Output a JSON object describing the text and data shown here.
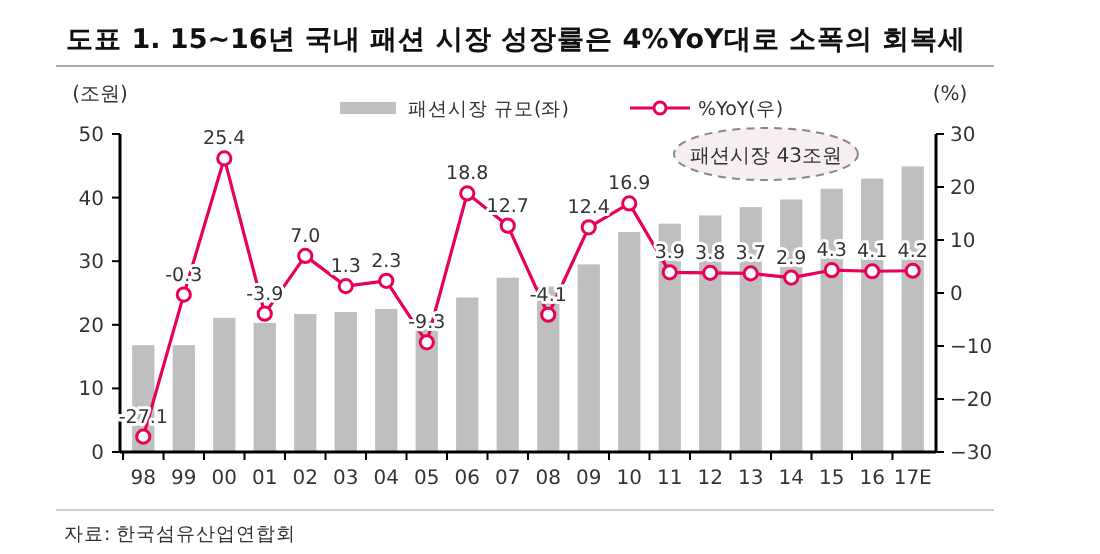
{
  "chart_data": {
    "type": "bar",
    "title": "도표 1. 15~16년 국내 패션 시장 성장률은 4%YoY대로 소폭의 회복세",
    "ylabel": "(조원)",
    "y2label": "(%)",
    "categories": [
      "98",
      "99",
      "00",
      "01",
      "02",
      "03",
      "04",
      "05",
      "06",
      "07",
      "08",
      "09",
      "10",
      "11",
      "12",
      "13",
      "14",
      "15",
      "16",
      "17E"
    ],
    "series": [
      {
        "name": "패션시장 규모(좌)",
        "color": "#bfbfbf",
        "values": [
          16.8,
          16.8,
          21.1,
          20.3,
          21.7,
          22.0,
          22.5,
          20.6,
          24.3,
          27.4,
          26.0,
          29.5,
          34.6,
          35.9,
          37.2,
          38.5,
          39.7,
          41.4,
          43.0,
          44.9
        ]
      },
      {
        "name": "%YoY(우)",
        "type": "line",
        "axis": "y2",
        "color": "#e8005a",
        "marker": "circle",
        "values": [
          -27.1,
          -0.3,
          25.4,
          -3.9,
          7.0,
          1.3,
          2.3,
          -9.3,
          18.8,
          12.7,
          -4.1,
          12.4,
          16.9,
          3.9,
          3.8,
          3.7,
          2.9,
          4.3,
          4.1,
          4.2
        ],
        "value_labels": [
          "-27.1",
          "-0.3",
          "25.4",
          "-3.9",
          "7.0",
          "1.3",
          "2.3",
          "-9.3",
          "18.8",
          "12.7",
          "-4.1",
          "12.4",
          "16.9",
          "3.9",
          "3.8",
          "3.7",
          "2.9",
          "4.3",
          "4.1",
          "4.2"
        ]
      }
    ],
    "ylim": [
      0,
      50
    ],
    "yticks": [
      0,
      10,
      20,
      30,
      40,
      50
    ],
    "y2lim": [
      -30,
      30
    ],
    "y2ticks": [
      -30,
      -20,
      -10,
      0,
      10,
      20,
      30
    ],
    "grid": false,
    "legend": "top",
    "annotations": [
      "패션시장 43조원",
      "자료: 한국섬유산업연합회"
    ]
  }
}
